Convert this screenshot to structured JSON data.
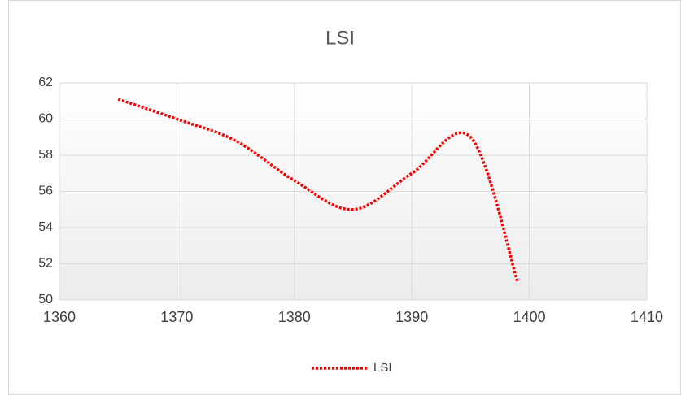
{
  "chart_data": {
    "type": "line",
    "title": "LSI",
    "x": [
      1365,
      1370,
      1375,
      1380,
      1385,
      1390,
      1395,
      1399
    ],
    "series": [
      {
        "name": "LSI",
        "color": "#ff0000",
        "values": [
          61.1,
          60,
          58.8,
          56.6,
          55,
          57,
          59,
          51
        ]
      }
    ],
    "xlim": [
      1360,
      1410
    ],
    "xticks": [
      1360,
      1370,
      1380,
      1390,
      1400,
      1410
    ],
    "ylim": [
      50,
      62
    ],
    "yticks": [
      50,
      52,
      54,
      56,
      58,
      60,
      62
    ],
    "grid": true,
    "smooth": true,
    "legend": "bottom"
  }
}
